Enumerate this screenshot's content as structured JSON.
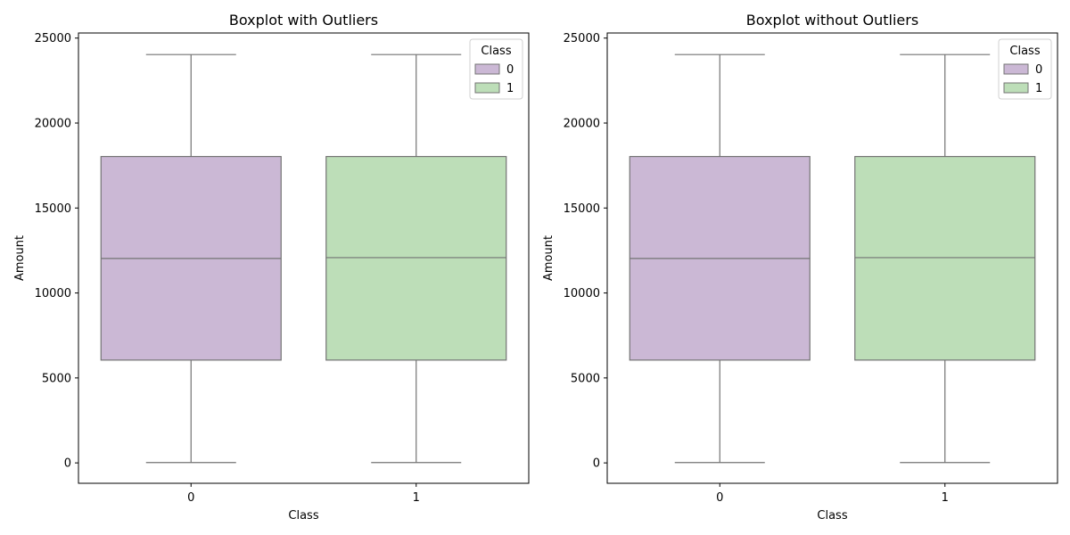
{
  "chart_data": [
    {
      "type": "box",
      "title": "Boxplot with Outliers",
      "xlabel": "Class",
      "ylabel": "Amount",
      "categories": [
        "0",
        "1"
      ],
      "ylim": [
        -1200,
        25300
      ],
      "yticks": [
        0,
        5000,
        10000,
        15000,
        20000,
        25000
      ],
      "boxes": [
        {
          "category": "0",
          "min": 20,
          "q1": 6050,
          "median": 12030,
          "q3": 18030,
          "max": 24030
        },
        {
          "category": "1",
          "min": 20,
          "q1": 6050,
          "median": 12080,
          "q3": 18030,
          "max": 24030
        }
      ],
      "legend": {
        "title": "Class",
        "entries": [
          "0",
          "1"
        ],
        "placement": "top-right"
      }
    },
    {
      "type": "box",
      "title": "Boxplot without Outliers",
      "xlabel": "Class",
      "ylabel": "Amount",
      "categories": [
        "0",
        "1"
      ],
      "ylim": [
        -1200,
        25300
      ],
      "yticks": [
        0,
        5000,
        10000,
        15000,
        20000,
        25000
      ],
      "boxes": [
        {
          "category": "0",
          "min": 20,
          "q1": 6050,
          "median": 12030,
          "q3": 18030,
          "max": 24030
        },
        {
          "category": "1",
          "min": 20,
          "q1": 6050,
          "median": 12080,
          "q3": 18030,
          "max": 24030
        }
      ],
      "legend": {
        "title": "Class",
        "entries": [
          "0",
          "1"
        ],
        "placement": "top-right"
      }
    }
  ],
  "colors": {
    "class_0": "#cbb8d5",
    "class_1": "#bddeb8",
    "line": "#737373",
    "axis": "#000000"
  }
}
